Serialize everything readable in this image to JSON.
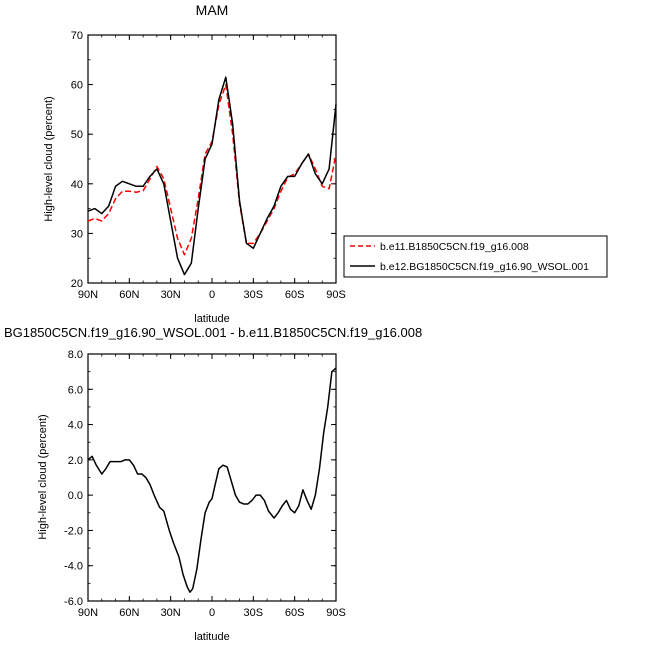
{
  "top_title": "MAM",
  "bottom_title": "BG1850C5CN.f19_g16.90_WSOL.001 - b.e11.B1850C5CN.f19_g16.008",
  "legend": {
    "entries": [
      {
        "label": "b.e11.B1850C5CN.f19_g16.008",
        "color": "#ff0000",
        "dash": true
      },
      {
        "label": "b.e12.BG1850C5CN.f19_g16.90_WSOL.001",
        "color": "#000000",
        "dash": false
      }
    ]
  },
  "chart_data": [
    {
      "type": "line",
      "title": "MAM",
      "xlabel": "latitude",
      "ylabel": "High-level cloud (percent)",
      "xlim": [
        90,
        -90
      ],
      "ylim": [
        20,
        70
      ],
      "x_ticks": [
        90,
        60,
        30,
        0,
        -30,
        -60,
        -90
      ],
      "x_tick_labels": [
        "90N",
        "60N",
        "30N",
        "0",
        "30S",
        "60S",
        "90S"
      ],
      "y_ticks": [
        20,
        30,
        40,
        50,
        60,
        70
      ],
      "y_tick_labels": [
        "20",
        "30",
        "40",
        "50",
        "60",
        "70"
      ],
      "x": [
        90,
        85,
        80,
        75,
        70,
        65,
        60,
        55,
        50,
        45,
        40,
        35,
        30,
        25,
        20,
        15,
        10,
        5,
        0,
        -5,
        -10,
        -15,
        -20,
        -25,
        -30,
        -35,
        -40,
        -45,
        -50,
        -55,
        -60,
        -65,
        -70,
        -75,
        -80,
        -85,
        -90
      ],
      "series": [
        {
          "name": "b.e11.B1850C5CN.f19_g16.008",
          "color": "#ff0000",
          "dash": true,
          "values": [
            32.5,
            33,
            32.5,
            34,
            37,
            38.5,
            38.5,
            38.3,
            38.6,
            41,
            43.5,
            41,
            35,
            29,
            25.7,
            29,
            37,
            46,
            48.5,
            56,
            60,
            50,
            36,
            28,
            28,
            30,
            32.5,
            35,
            38.5,
            41.3,
            42,
            44,
            46,
            43,
            39.5,
            39,
            46
          ]
        },
        {
          "name": "b.e12.BG1850C5CN.f19_g16.90_WSOL.001",
          "color": "#000000",
          "dash": false,
          "values": [
            34.5,
            35,
            34,
            35.5,
            39.5,
            40.5,
            40,
            39.5,
            39.5,
            41.5,
            43,
            40,
            32.5,
            25,
            21.7,
            24,
            35,
            45,
            48,
            57,
            61.5,
            52,
            36.5,
            28,
            27,
            30,
            33,
            35.5,
            39.5,
            41.5,
            41.5,
            44,
            46,
            42,
            40,
            43,
            56
          ]
        }
      ]
    },
    {
      "type": "line",
      "title": "BG1850C5CN.f19_g16.90_WSOL.001 - b.e11.B1850C5CN.f19_g16.008",
      "xlabel": "latitude",
      "ylabel": "High-level cloud (percent)",
      "xlim": [
        90,
        -90
      ],
      "ylim": [
        -6,
        8
      ],
      "x_ticks": [
        90,
        60,
        30,
        0,
        -30,
        -60,
        -90
      ],
      "x_tick_labels": [
        "90N",
        "60N",
        "30N",
        "0",
        "30S",
        "60S",
        "90S"
      ],
      "y_ticks": [
        -6,
        -4,
        -2,
        0,
        2,
        4,
        6,
        8
      ],
      "y_tick_labels": [
        "-6.0",
        "-4.0",
        "-2.0",
        "0.0",
        "2.0",
        "4.0",
        "6.0",
        "8.0"
      ],
      "x": [
        90,
        87,
        84,
        80,
        77,
        74,
        70,
        66,
        63,
        60,
        57,
        54,
        51,
        48,
        45,
        42,
        38,
        35,
        31,
        28,
        24,
        21,
        18,
        16,
        14,
        11,
        8,
        5,
        2,
        0,
        -2,
        -5,
        -8,
        -11,
        -14,
        -17,
        -20,
        -23,
        -26,
        -29,
        -32,
        -35,
        -38,
        -41,
        -45,
        -48,
        -51,
        -54,
        -57,
        -60,
        -63,
        -66,
        -69,
        -72,
        -75,
        -78,
        -81,
        -84,
        -87,
        -90
      ],
      "series": [
        {
          "name": "",
          "color": "#000000",
          "dash": false,
          "values": [
            2.0,
            2.2,
            1.7,
            1.2,
            1.5,
            1.9,
            1.9,
            1.9,
            2.0,
            2.0,
            1.7,
            1.2,
            1.2,
            1.0,
            0.6,
            0.0,
            -0.7,
            -0.9,
            -2.0,
            -2.7,
            -3.5,
            -4.5,
            -5.2,
            -5.5,
            -5.3,
            -4.2,
            -2.5,
            -1.0,
            -0.4,
            -0.2,
            0.5,
            1.5,
            1.7,
            1.6,
            0.8,
            0.0,
            -0.4,
            -0.5,
            -0.5,
            -0.3,
            0.0,
            0.0,
            -0.3,
            -0.9,
            -1.3,
            -1.0,
            -0.6,
            -0.3,
            -0.8,
            -1.0,
            -0.6,
            0.3,
            -0.3,
            -0.8,
            0.0,
            1.5,
            3.5,
            5.0,
            7.0,
            7.2
          ]
        }
      ]
    }
  ]
}
